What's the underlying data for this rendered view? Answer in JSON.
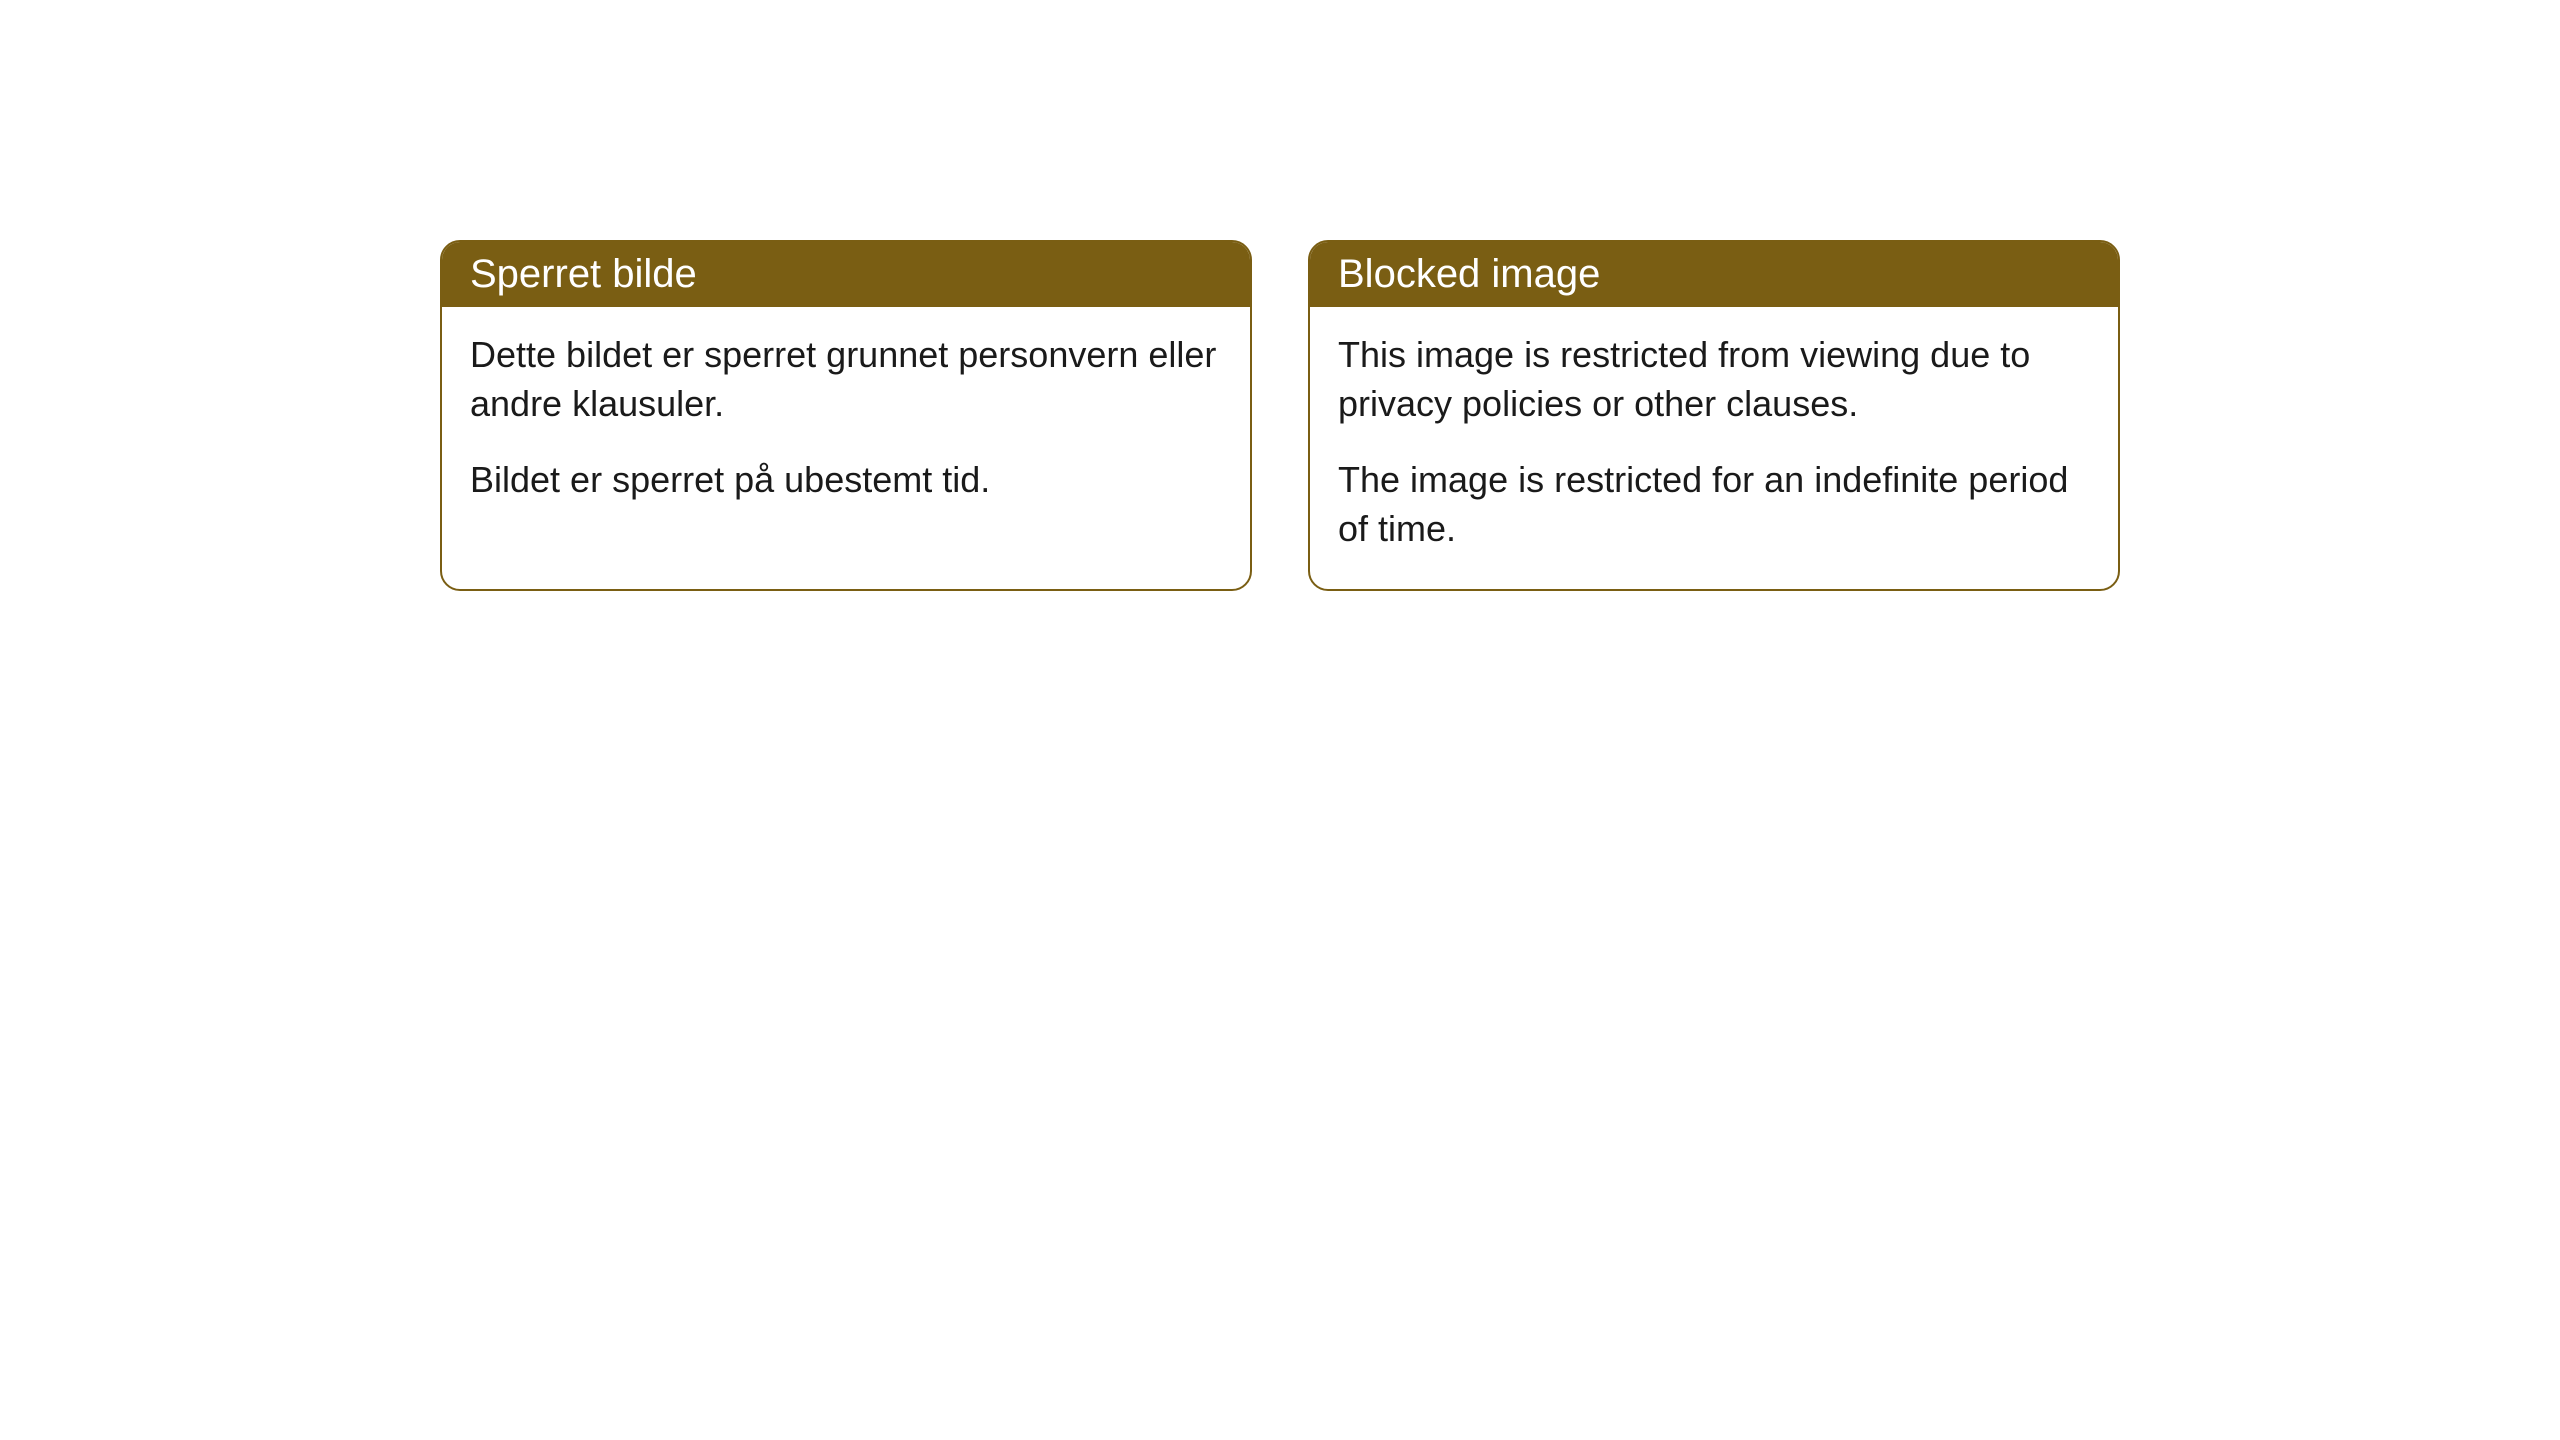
{
  "cards": [
    {
      "title": "Sperret bilde",
      "paragraph1": "Dette bildet er sperret grunnet personvern eller andre klausuler.",
      "paragraph2": "Bildet er sperret på ubestemt tid."
    },
    {
      "title": "Blocked image",
      "paragraph1": "This image is restricted from viewing due to privacy policies or other clauses.",
      "paragraph2": "The image is restricted for an indefinite period of time."
    }
  ],
  "styles": {
    "header_bg_color": "#7a5e13",
    "header_text_color": "#ffffff",
    "border_color": "#7a5e13",
    "body_bg_color": "#ffffff",
    "body_text_color": "#1a1a1a",
    "border_radius": 20,
    "header_fontsize": 40,
    "body_fontsize": 36
  }
}
